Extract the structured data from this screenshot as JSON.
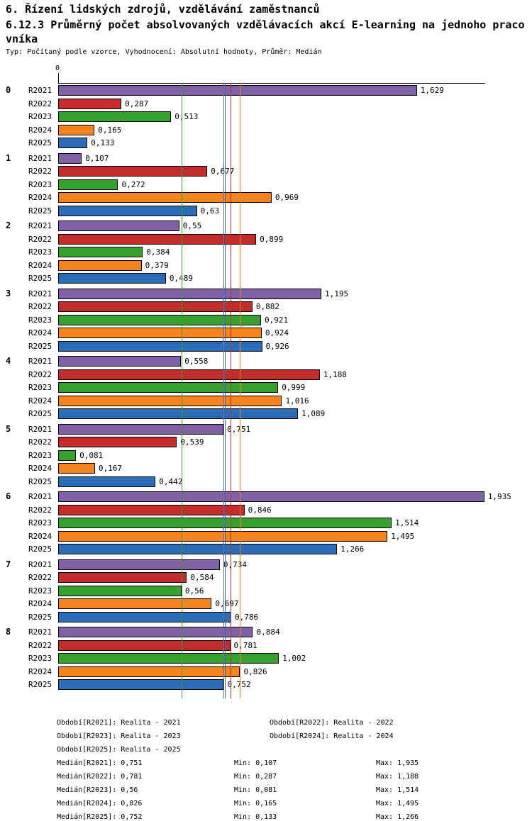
{
  "header": {
    "title_line1": "6. Řízení lidských zdrojů, vzdělávání zaměstnanců",
    "title_line2": "6.12.3 Průměrný počet absolvovaných vzdělávacích akcí E-learning na jednoho praco",
    "title_line3": "vníka",
    "subtitle": "Typ: Počítaný podle vzorce, Vyhodnocení: Absolutní hodnoty, Průměr: Medián"
  },
  "chart_data": {
    "type": "bar",
    "orientation": "horizontal",
    "title": "6.12.3 Průměrný počet absolvovaných vzdělávacích akcí E-learning na jednoho pracovníka",
    "axis": {
      "zero_label": "0",
      "xlim": [
        0,
        1.935
      ],
      "gridlines": false
    },
    "categories": [
      "0",
      "1",
      "2",
      "3",
      "4",
      "5",
      "6",
      "7",
      "8"
    ],
    "series": [
      {
        "label": "R2021",
        "color": "#8161a5",
        "median": 0.751
      },
      {
        "label": "R2022",
        "color": "#c42b2b",
        "median": 0.781
      },
      {
        "label": "R2023",
        "color": "#36a22d",
        "median": 0.56
      },
      {
        "label": "R2024",
        "color": "#f4831b",
        "median": 0.826
      },
      {
        "label": "R2025",
        "color": "#2b6db8",
        "median": 0.752
      }
    ],
    "groups": [
      {
        "label": "0",
        "values": [
          1.629,
          0.287,
          0.513,
          0.165,
          0.133
        ],
        "displays": [
          "1,629",
          "0,287",
          "0,513",
          "0,165",
          "0,133"
        ]
      },
      {
        "label": "1",
        "values": [
          0.107,
          0.677,
          0.272,
          0.969,
          0.63
        ],
        "displays": [
          "0,107",
          "0,677",
          "0,272",
          "0,969",
          "0,63"
        ]
      },
      {
        "label": "2",
        "values": [
          0.55,
          0.899,
          0.384,
          0.379,
          0.489
        ],
        "displays": [
          "0,55",
          "0,899",
          "0,384",
          "0,379",
          "0,489"
        ]
      },
      {
        "label": "3",
        "values": [
          1.195,
          0.882,
          0.921,
          0.924,
          0.926
        ],
        "displays": [
          "1,195",
          "0,882",
          "0,921",
          "0,924",
          "0,926"
        ]
      },
      {
        "label": "4",
        "values": [
          0.558,
          1.188,
          0.999,
          1.016,
          1.089
        ],
        "displays": [
          "0,558",
          "1,188",
          "0,999",
          "1,016",
          "1,089"
        ]
      },
      {
        "label": "5",
        "values": [
          0.751,
          0.539,
          0.081,
          0.167,
          0.442
        ],
        "displays": [
          "0,751",
          "0,539",
          "0,081",
          "0,167",
          "0,442"
        ]
      },
      {
        "label": "6",
        "values": [
          1.935,
          0.846,
          1.514,
          1.495,
          1.266
        ],
        "displays": [
          "1,935",
          "0,846",
          "1,514",
          "1,495",
          "1,266"
        ]
      },
      {
        "label": "7",
        "values": [
          0.734,
          0.584,
          0.56,
          0.697,
          0.786
        ],
        "displays": [
          "0,734",
          "0,584",
          "0,56",
          "0,697",
          "0,786"
        ]
      },
      {
        "label": "8",
        "values": [
          0.884,
          0.781,
          1.002,
          0.826,
          0.752
        ],
        "displays": [
          "0,884",
          "0,781",
          "1,002",
          "0,826",
          "0,752"
        ]
      }
    ]
  },
  "legend": {
    "items": [
      "Období[R2021]: Realita - 2021",
      "Období[R2022]: Realita - 2022",
      "Období[R2023]: Realita - 2023",
      "Období[R2024]: Realita - 2024",
      "Období[R2025]: Realita - 2025"
    ]
  },
  "stats": {
    "rows": [
      {
        "median": "Medián[R2021]: 0,751",
        "min": "Min: 0,107",
        "max": "Max: 1,935"
      },
      {
        "median": "Medián[R2022]: 0,781",
        "min": "Min: 0,287",
        "max": "Max: 1,188"
      },
      {
        "median": "Medián[R2023]: 0,56",
        "min": "Min: 0,081",
        "max": "Max: 1,514"
      },
      {
        "median": "Medián[R2024]: 0,826",
        "min": "Min: 0,165",
        "max": "Max: 1,495"
      },
      {
        "median": "Medián[R2025]: 0,752",
        "min": "Min: 0,133",
        "max": "Max: 1,266"
      }
    ]
  }
}
